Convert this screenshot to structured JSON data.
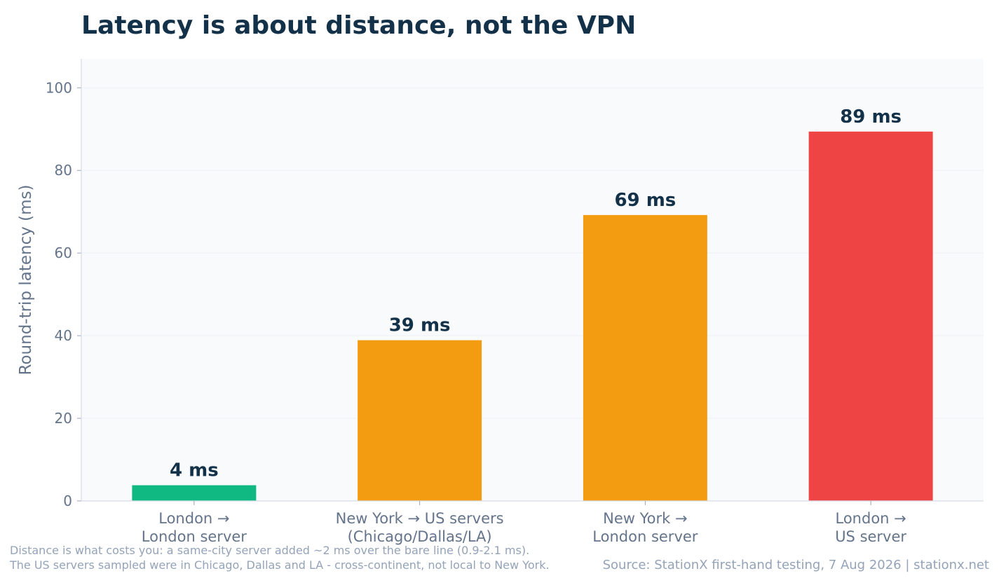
{
  "chart_data": {
    "type": "bar",
    "title": "Latency is about distance, not the VPN",
    "ylabel": "Round-trip latency (ms)",
    "xlabel": "",
    "ylim": [
      0,
      107
    ],
    "yticks": [
      0,
      20,
      40,
      60,
      80,
      100
    ],
    "grid": true,
    "categories": [
      [
        "London →",
        "London server"
      ],
      [
        "New York → US servers",
        "(Chicago/Dallas/LA)"
      ],
      [
        "New York →",
        "London server"
      ],
      [
        "London →",
        "US server"
      ]
    ],
    "values": [
      3.8,
      38.9,
      69.2,
      89.4
    ],
    "value_labels": [
      "4 ms",
      "39 ms",
      "69 ms",
      "89 ms"
    ],
    "colors": [
      "#10b981",
      "#f39c12",
      "#f39c12",
      "#ef4444"
    ]
  },
  "footer": {
    "note_line1": "Distance is what costs you: a same-city server added ~2 ms over the bare line (0.9-2.1 ms).",
    "note_line2": "The US servers sampled were in Chicago, Dallas and LA - cross-continent, not local to New York.",
    "source": "Source: StationX first-hand testing, 7 Aug 2026 | stationx.net"
  },
  "colors": {
    "title": "#13324a",
    "axis_text": "#64748b",
    "plot_bg": "#f8fafc",
    "grid": "#eef2f6"
  }
}
